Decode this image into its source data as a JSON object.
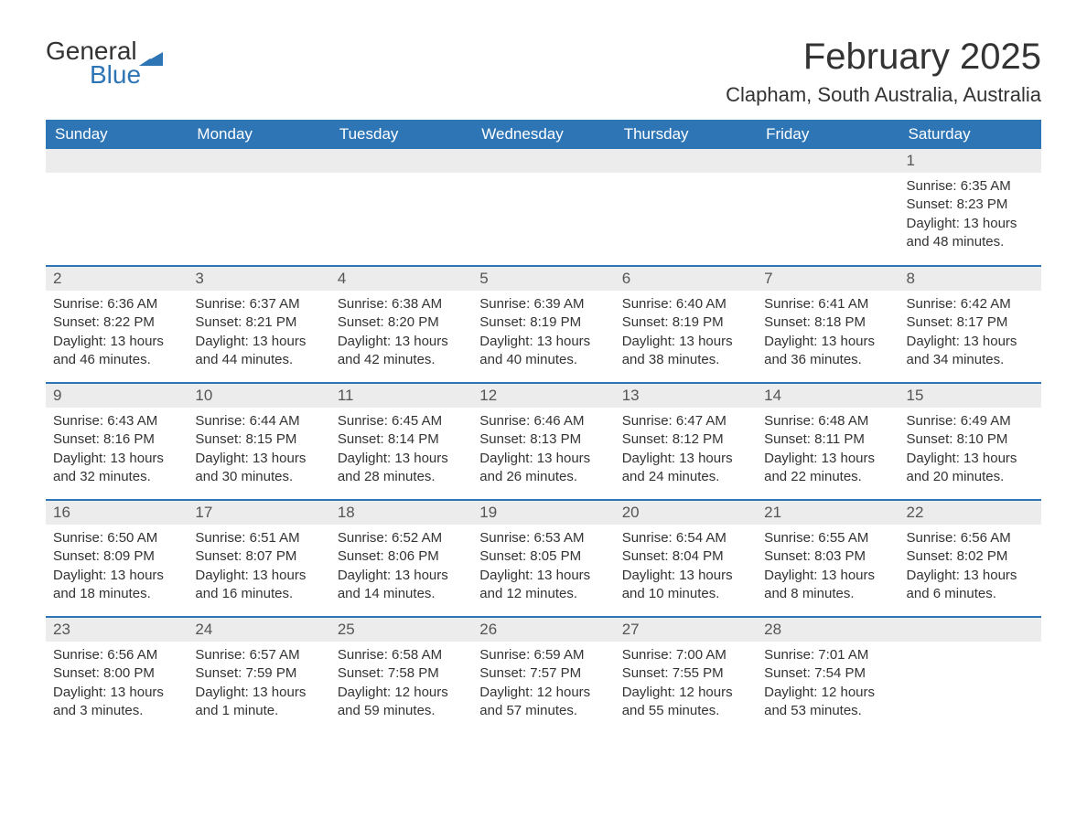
{
  "brand": {
    "word1": "General",
    "word2": "Blue"
  },
  "title": "February 2025",
  "location": "Clapham, South Australia, Australia",
  "colors": {
    "header_bg": "#2e75b6",
    "header_text": "#ffffff",
    "daynum_bg": "#ececec",
    "daynum_text": "#555555",
    "body_text": "#333333",
    "rule": "#2e75b6",
    "page_bg": "#ffffff"
  },
  "typography": {
    "title_fontsize": 40,
    "location_fontsize": 22,
    "header_fontsize": 17,
    "daynum_fontsize": 17,
    "body_fontsize": 15,
    "logo_fontsize": 28
  },
  "day_headers": [
    "Sunday",
    "Monday",
    "Tuesday",
    "Wednesday",
    "Thursday",
    "Friday",
    "Saturday"
  ],
  "weeks": [
    [
      null,
      null,
      null,
      null,
      null,
      null,
      {
        "n": "1",
        "sunrise": "Sunrise: 6:35 AM",
        "sunset": "Sunset: 8:23 PM",
        "daylight": "Daylight: 13 hours and 48 minutes."
      }
    ],
    [
      {
        "n": "2",
        "sunrise": "Sunrise: 6:36 AM",
        "sunset": "Sunset: 8:22 PM",
        "daylight": "Daylight: 13 hours and 46 minutes."
      },
      {
        "n": "3",
        "sunrise": "Sunrise: 6:37 AM",
        "sunset": "Sunset: 8:21 PM",
        "daylight": "Daylight: 13 hours and 44 minutes."
      },
      {
        "n": "4",
        "sunrise": "Sunrise: 6:38 AM",
        "sunset": "Sunset: 8:20 PM",
        "daylight": "Daylight: 13 hours and 42 minutes."
      },
      {
        "n": "5",
        "sunrise": "Sunrise: 6:39 AM",
        "sunset": "Sunset: 8:19 PM",
        "daylight": "Daylight: 13 hours and 40 minutes."
      },
      {
        "n": "6",
        "sunrise": "Sunrise: 6:40 AM",
        "sunset": "Sunset: 8:19 PM",
        "daylight": "Daylight: 13 hours and 38 minutes."
      },
      {
        "n": "7",
        "sunrise": "Sunrise: 6:41 AM",
        "sunset": "Sunset: 8:18 PM",
        "daylight": "Daylight: 13 hours and 36 minutes."
      },
      {
        "n": "8",
        "sunrise": "Sunrise: 6:42 AM",
        "sunset": "Sunset: 8:17 PM",
        "daylight": "Daylight: 13 hours and 34 minutes."
      }
    ],
    [
      {
        "n": "9",
        "sunrise": "Sunrise: 6:43 AM",
        "sunset": "Sunset: 8:16 PM",
        "daylight": "Daylight: 13 hours and 32 minutes."
      },
      {
        "n": "10",
        "sunrise": "Sunrise: 6:44 AM",
        "sunset": "Sunset: 8:15 PM",
        "daylight": "Daylight: 13 hours and 30 minutes."
      },
      {
        "n": "11",
        "sunrise": "Sunrise: 6:45 AM",
        "sunset": "Sunset: 8:14 PM",
        "daylight": "Daylight: 13 hours and 28 minutes."
      },
      {
        "n": "12",
        "sunrise": "Sunrise: 6:46 AM",
        "sunset": "Sunset: 8:13 PM",
        "daylight": "Daylight: 13 hours and 26 minutes."
      },
      {
        "n": "13",
        "sunrise": "Sunrise: 6:47 AM",
        "sunset": "Sunset: 8:12 PM",
        "daylight": "Daylight: 13 hours and 24 minutes."
      },
      {
        "n": "14",
        "sunrise": "Sunrise: 6:48 AM",
        "sunset": "Sunset: 8:11 PM",
        "daylight": "Daylight: 13 hours and 22 minutes."
      },
      {
        "n": "15",
        "sunrise": "Sunrise: 6:49 AM",
        "sunset": "Sunset: 8:10 PM",
        "daylight": "Daylight: 13 hours and 20 minutes."
      }
    ],
    [
      {
        "n": "16",
        "sunrise": "Sunrise: 6:50 AM",
        "sunset": "Sunset: 8:09 PM",
        "daylight": "Daylight: 13 hours and 18 minutes."
      },
      {
        "n": "17",
        "sunrise": "Sunrise: 6:51 AM",
        "sunset": "Sunset: 8:07 PM",
        "daylight": "Daylight: 13 hours and 16 minutes."
      },
      {
        "n": "18",
        "sunrise": "Sunrise: 6:52 AM",
        "sunset": "Sunset: 8:06 PM",
        "daylight": "Daylight: 13 hours and 14 minutes."
      },
      {
        "n": "19",
        "sunrise": "Sunrise: 6:53 AM",
        "sunset": "Sunset: 8:05 PM",
        "daylight": "Daylight: 13 hours and 12 minutes."
      },
      {
        "n": "20",
        "sunrise": "Sunrise: 6:54 AM",
        "sunset": "Sunset: 8:04 PM",
        "daylight": "Daylight: 13 hours and 10 minutes."
      },
      {
        "n": "21",
        "sunrise": "Sunrise: 6:55 AM",
        "sunset": "Sunset: 8:03 PM",
        "daylight": "Daylight: 13 hours and 8 minutes."
      },
      {
        "n": "22",
        "sunrise": "Sunrise: 6:56 AM",
        "sunset": "Sunset: 8:02 PM",
        "daylight": "Daylight: 13 hours and 6 minutes."
      }
    ],
    [
      {
        "n": "23",
        "sunrise": "Sunrise: 6:56 AM",
        "sunset": "Sunset: 8:00 PM",
        "daylight": "Daylight: 13 hours and 3 minutes."
      },
      {
        "n": "24",
        "sunrise": "Sunrise: 6:57 AM",
        "sunset": "Sunset: 7:59 PM",
        "daylight": "Daylight: 13 hours and 1 minute."
      },
      {
        "n": "25",
        "sunrise": "Sunrise: 6:58 AM",
        "sunset": "Sunset: 7:58 PM",
        "daylight": "Daylight: 12 hours and 59 minutes."
      },
      {
        "n": "26",
        "sunrise": "Sunrise: 6:59 AM",
        "sunset": "Sunset: 7:57 PM",
        "daylight": "Daylight: 12 hours and 57 minutes."
      },
      {
        "n": "27",
        "sunrise": "Sunrise: 7:00 AM",
        "sunset": "Sunset: 7:55 PM",
        "daylight": "Daylight: 12 hours and 55 minutes."
      },
      {
        "n": "28",
        "sunrise": "Sunrise: 7:01 AM",
        "sunset": "Sunset: 7:54 PM",
        "daylight": "Daylight: 12 hours and 53 minutes."
      },
      null
    ]
  ]
}
